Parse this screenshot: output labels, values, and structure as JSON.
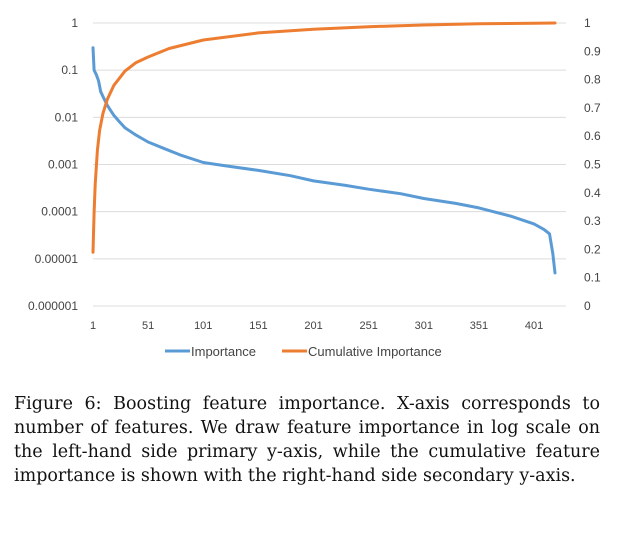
{
  "chart_data": {
    "type": "line",
    "title": "",
    "x_ticks": [
      "1",
      "51",
      "101",
      "151",
      "201",
      "251",
      "301",
      "351",
      "401"
    ],
    "x_range": [
      1,
      430
    ],
    "y_left": {
      "scale": "log",
      "ticks": [
        "1",
        "0.1",
        "0.01",
        "0.001",
        "0.0001",
        "0.00001",
        "0.000001"
      ],
      "range": [
        1e-06,
        1
      ]
    },
    "y_right": {
      "scale": "linear",
      "ticks": [
        "1",
        "0.9",
        "0.8",
        "0.7",
        "0.6",
        "0.5",
        "0.4",
        "0.3",
        "0.2",
        "0.1",
        "0"
      ],
      "range": [
        0,
        1
      ]
    },
    "grid": true,
    "legend_position": "bottom",
    "series": [
      {
        "name": "Importance",
        "axis": "left",
        "color": "#5b9bd5",
        "x": [
          1,
          2,
          4,
          6,
          8,
          11,
          14,
          17,
          20,
          25,
          30,
          40,
          51,
          65,
          80,
          101,
          120,
          151,
          180,
          201,
          230,
          251,
          280,
          301,
          330,
          351,
          380,
          401,
          410,
          415,
          418,
          420
        ],
        "y": [
          0.3,
          0.1,
          0.08,
          0.06,
          0.035,
          0.025,
          0.018,
          0.014,
          0.011,
          0.008,
          0.006,
          0.0042,
          0.003,
          0.0022,
          0.0016,
          0.0011,
          0.00095,
          0.00075,
          0.00058,
          0.00045,
          0.00036,
          0.0003,
          0.00024,
          0.00019,
          0.00015,
          0.00012,
          8e-05,
          5.5e-05,
          4.2e-05,
          3.4e-05,
          1.3e-05,
          5e-06
        ]
      },
      {
        "name": "Cumulative Importance",
        "axis": "right",
        "color": "#ed7d31",
        "x": [
          1,
          2,
          3,
          5,
          7,
          10,
          14,
          20,
          30,
          40,
          51,
          70,
          101,
          151,
          201,
          251,
          301,
          351,
          401,
          420
        ],
        "y": [
          0.19,
          0.33,
          0.43,
          0.55,
          0.62,
          0.68,
          0.73,
          0.78,
          0.83,
          0.86,
          0.88,
          0.91,
          0.94,
          0.965,
          0.978,
          0.987,
          0.993,
          0.997,
          0.999,
          1.0
        ]
      }
    ]
  },
  "caption": "Figure 6: Boosting feature importance. X-axis corresponds to number of features. We draw feature importance in log scale on the left-hand side primary y-axis, while the cumulative feature importance is shown with the right-hand side secondary y-axis."
}
